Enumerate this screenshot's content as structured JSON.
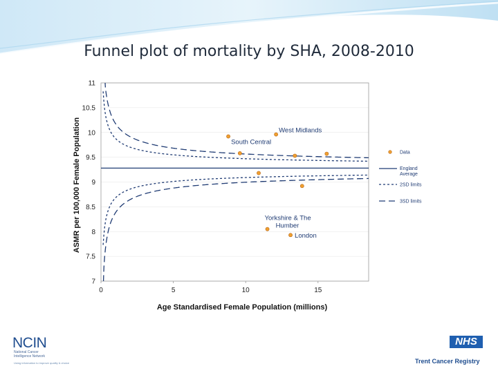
{
  "slide": {
    "title": "Funnel plot of mortality by SHA, 2008-2010"
  },
  "chart_data": {
    "type": "scatter",
    "title": "Funnel plot of mortality by SHA, 2008-2010",
    "xlabel": "Age Standardised Female Population (millions)",
    "ylabel": "ASMR per 100,000 Female Population",
    "xlim": [
      0,
      18.5
    ],
    "ylim": [
      7,
      11
    ],
    "x_ticks": [
      0,
      5,
      10,
      15
    ],
    "y_ticks": [
      7,
      7.5,
      8,
      8.5,
      9,
      9.5,
      10,
      10.5,
      11
    ],
    "england_average": 9.28,
    "points": [
      {
        "x": 8.8,
        "y": 9.92,
        "label": "South Central"
      },
      {
        "x": 9.6,
        "y": 9.58,
        "label": ""
      },
      {
        "x": 10.9,
        "y": 9.18,
        "label": ""
      },
      {
        "x": 12.1,
        "y": 9.96,
        "label": "West Midlands"
      },
      {
        "x": 13.4,
        "y": 9.53,
        "label": ""
      },
      {
        "x": 13.9,
        "y": 8.92,
        "label": ""
      },
      {
        "x": 15.6,
        "y": 9.57,
        "label": ""
      },
      {
        "x": 11.5,
        "y": 8.05,
        "label": "Yorkshire & The Humber"
      },
      {
        "x": 13.1,
        "y": 7.93,
        "label": "London"
      }
    ],
    "limits": [
      {
        "name": "2SD limits",
        "style": "short-dash",
        "coef": 0.6
      },
      {
        "name": "3SD limits",
        "style": "long-dash",
        "coef": 0.9
      }
    ],
    "legend": [
      {
        "label": "Data",
        "symbol": "dot"
      },
      {
        "label": "England Average",
        "symbol": "solid-line"
      },
      {
        "label": "2SD limits",
        "symbol": "short-dash"
      },
      {
        "label": "3SD limits",
        "symbol": "long-dash"
      }
    ],
    "legend_position": "right",
    "colors": {
      "point_fill": "#f0a030",
      "point_stroke": "#b4651a",
      "line": "#1f3b73"
    }
  },
  "footer": {
    "ncin_logo_text": "NCIN",
    "ncin_subtitle_line1": "National Cancer",
    "ncin_subtitle_line2": "Intelligence Network",
    "ncin_tagline": "Using information to improve quality & choice",
    "nhs_logo_text": "NHS",
    "registry_name": "Trent Cancer Registry"
  }
}
